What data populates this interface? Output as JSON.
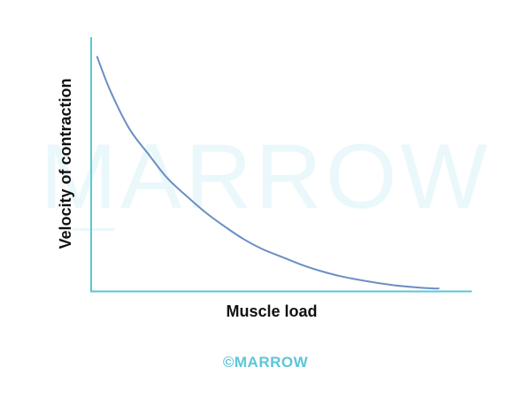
{
  "colors": {
    "axis": "#5bc6d8",
    "curve": "#6a8fc3",
    "watermark": "#eaf8fb",
    "logo": "#5bc6d8"
  },
  "watermark": {
    "text": "MARROW"
  },
  "footer": {
    "copyright": "©",
    "brand": "MARROW"
  },
  "chart_data": {
    "type": "line",
    "title": "",
    "xlabel": "Muscle load",
    "ylabel": "Velocity of contraction",
    "grid": false,
    "xlim": [
      0,
      1
    ],
    "ylim": [
      0,
      1
    ],
    "series": [
      {
        "x": [
          0.015,
          0.05,
          0.1,
          0.15,
          0.2,
          0.25,
          0.3,
          0.35,
          0.4,
          0.45,
          0.5,
          0.55,
          0.6,
          0.65,
          0.7,
          0.75,
          0.8,
          0.85,
          0.9,
          0.915
        ],
        "y": [
          0.925,
          0.79,
          0.64,
          0.54,
          0.445,
          0.375,
          0.31,
          0.255,
          0.205,
          0.165,
          0.135,
          0.105,
          0.08,
          0.06,
          0.045,
          0.032,
          0.022,
          0.015,
          0.01,
          0.01
        ]
      }
    ]
  }
}
